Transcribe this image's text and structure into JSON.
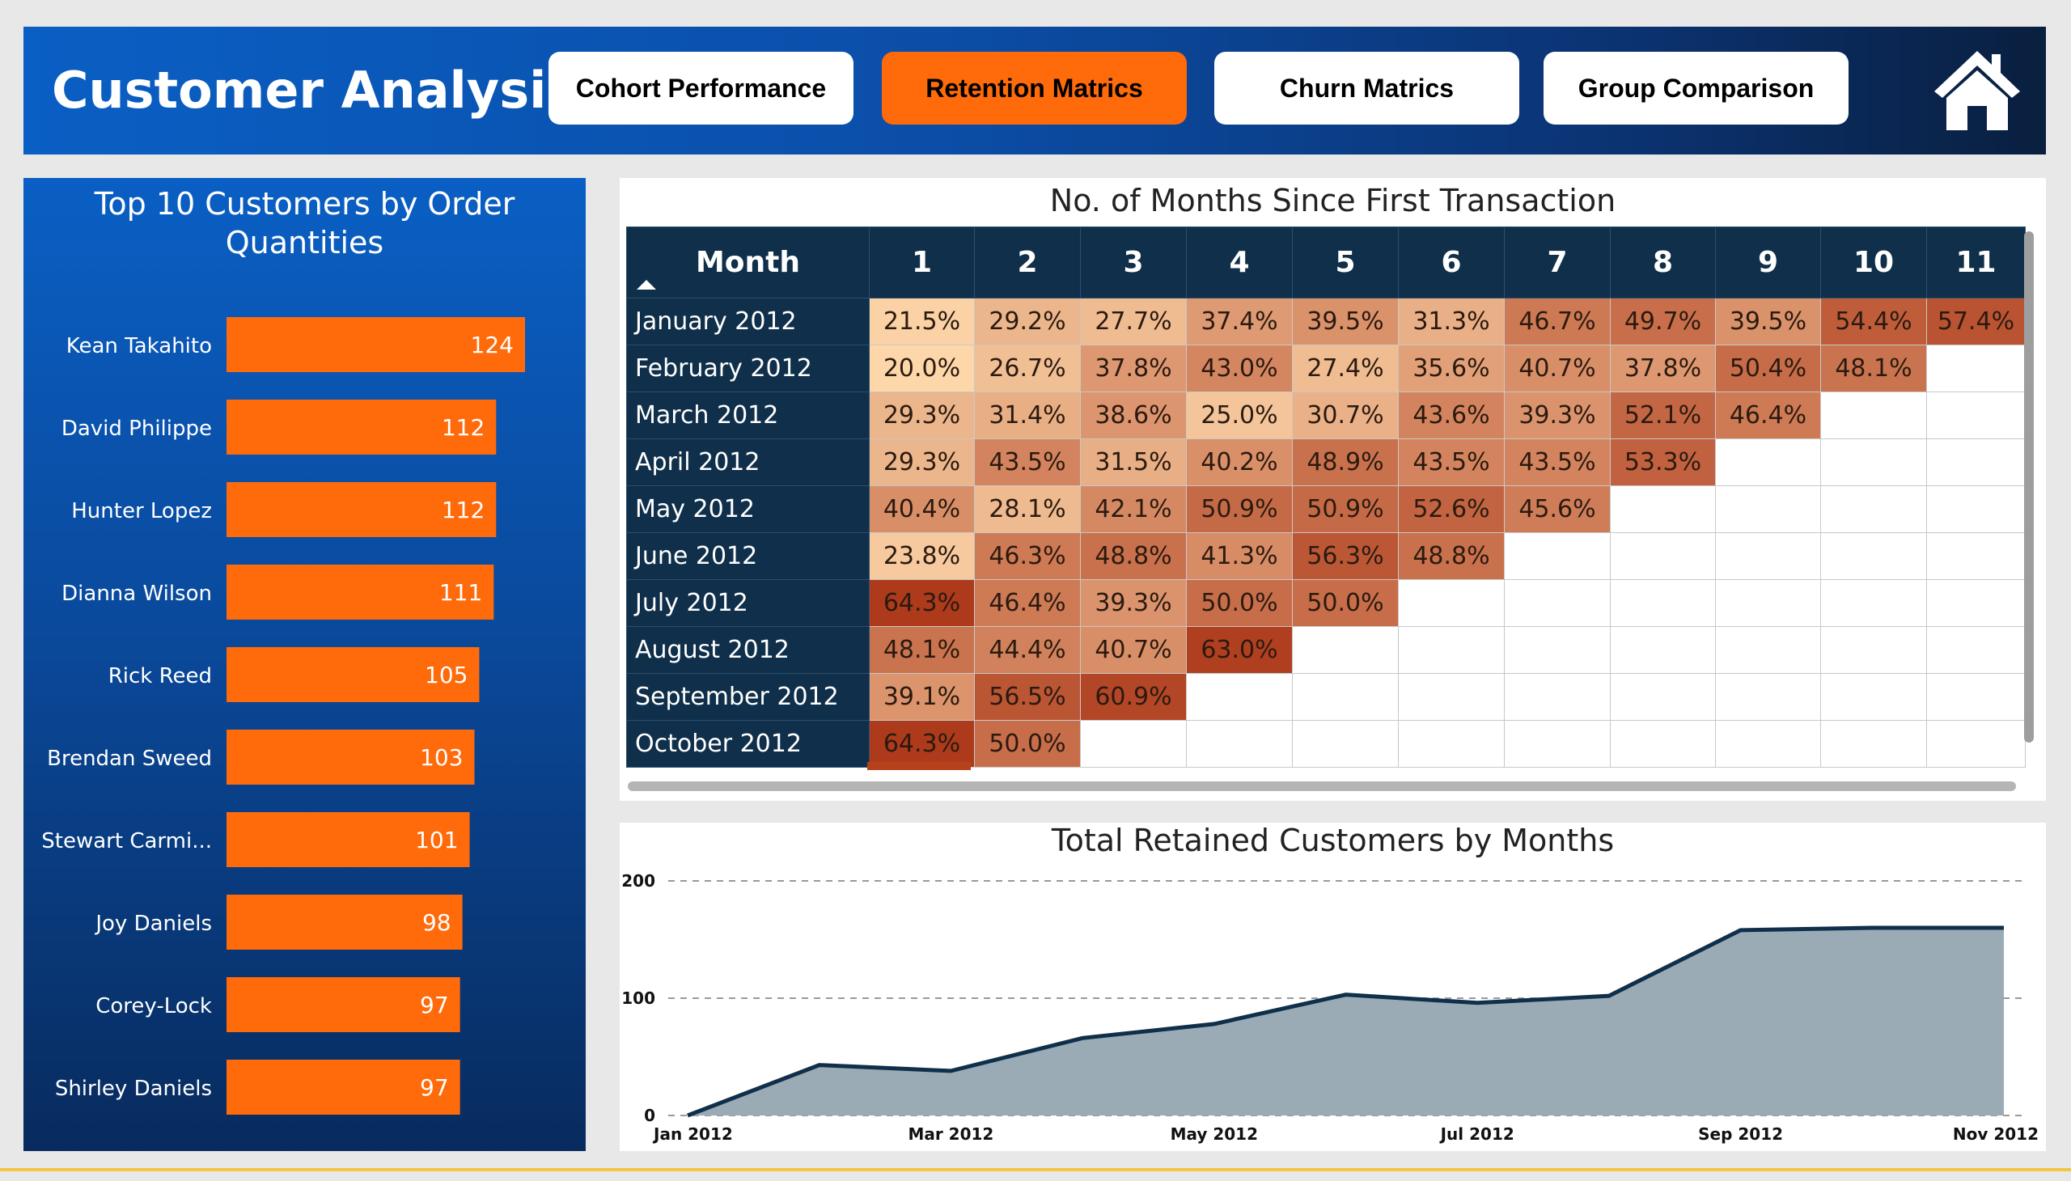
{
  "header": {
    "title": "Customer Analysis",
    "nav": [
      {
        "label": "Cohort Performance",
        "active": false
      },
      {
        "label": "Retention Matrics",
        "active": true
      },
      {
        "label": "Churn Matrics",
        "active": false
      },
      {
        "label": "Group Comparison",
        "active": false
      }
    ],
    "home_icon": "home-icon"
  },
  "colors": {
    "accent_orange": "#ff6a0a",
    "header_blue": "#0a5fc4",
    "matrix_header": "#0f2f4a",
    "area_fill": "#9aabb6",
    "area_line": "#0f2f4a"
  },
  "top_customers": {
    "title": "Top 10 Customers by Order Quantities",
    "chart_data": {
      "type": "bar",
      "orientation": "horizontal",
      "categories": [
        "Kean Takahito",
        "David Philippe",
        "Hunter Lopez",
        "Dianna Wilson",
        "Rick Reed",
        "Brendan Sweed",
        "Stewart Carmi...",
        "Joy Daniels",
        "Corey-Lock",
        "Shirley Daniels"
      ],
      "values": [
        124,
        112,
        112,
        111,
        105,
        103,
        101,
        98,
        97,
        97
      ],
      "data_labels": true
    }
  },
  "retention_matrix": {
    "title": "No. of Months Since First Transaction",
    "row_header": "Month",
    "columns": [
      "1",
      "2",
      "3",
      "4",
      "5",
      "6",
      "7",
      "8",
      "9",
      "10",
      "11"
    ],
    "rows": [
      {
        "month": "January 2012",
        "values": [
          "21.5%",
          "29.2%",
          "27.7%",
          "37.4%",
          "39.5%",
          "31.3%",
          "46.7%",
          "49.7%",
          "39.5%",
          "54.4%",
          "57.4%"
        ]
      },
      {
        "month": "February 2012",
        "values": [
          "20.0%",
          "26.7%",
          "37.8%",
          "43.0%",
          "27.4%",
          "35.6%",
          "40.7%",
          "37.8%",
          "50.4%",
          "48.1%",
          ""
        ]
      },
      {
        "month": "March 2012",
        "values": [
          "29.3%",
          "31.4%",
          "38.6%",
          "25.0%",
          "30.7%",
          "43.6%",
          "39.3%",
          "52.1%",
          "46.4%",
          "",
          ""
        ]
      },
      {
        "month": "April 2012",
        "values": [
          "29.3%",
          "43.5%",
          "31.5%",
          "40.2%",
          "48.9%",
          "43.5%",
          "43.5%",
          "53.3%",
          "",
          "",
          ""
        ]
      },
      {
        "month": "May 2012",
        "values": [
          "40.4%",
          "28.1%",
          "42.1%",
          "50.9%",
          "50.9%",
          "52.6%",
          "45.6%",
          "",
          "",
          "",
          ""
        ]
      },
      {
        "month": "June 2012",
        "values": [
          "23.8%",
          "46.3%",
          "48.8%",
          "41.3%",
          "56.3%",
          "48.8%",
          "",
          "",
          "",
          "",
          ""
        ]
      },
      {
        "month": "July 2012",
        "values": [
          "64.3%",
          "46.4%",
          "39.3%",
          "50.0%",
          "50.0%",
          "",
          "",
          "",
          "",
          "",
          ""
        ]
      },
      {
        "month": "August 2012",
        "values": [
          "48.1%",
          "44.4%",
          "40.7%",
          "63.0%",
          "",
          "",
          "",
          "",
          "",
          "",
          ""
        ]
      },
      {
        "month": "September 2012",
        "values": [
          "39.1%",
          "56.5%",
          "60.9%",
          "",
          "",
          "",
          "",
          "",
          "",
          "",
          ""
        ]
      },
      {
        "month": "October 2012",
        "values": [
          "64.3%",
          "50.0%",
          "",
          "",
          "",
          "",
          "",
          "",
          "",
          "",
          ""
        ]
      }
    ]
  },
  "retained_customers": {
    "title": "Total Retained Customers by Months",
    "chart_data": {
      "type": "area",
      "x": [
        "Jan 2012",
        "Feb 2012",
        "Mar 2012",
        "Apr 2012",
        "May 2012",
        "Jun 2012",
        "Jul 2012",
        "Aug 2012",
        "Sep 2012",
        "Oct 2012",
        "Nov 2012"
      ],
      "values": [
        0,
        43,
        38,
        66,
        78,
        103,
        96,
        102,
        158,
        160,
        160
      ],
      "x_tick_labels": [
        "Jan 2012",
        "Mar 2012",
        "May 2012",
        "Jul 2012",
        "Sep 2012",
        "Nov 2012"
      ],
      "y_ticks": [
        0,
        100,
        200
      ],
      "ylim": [
        0,
        200
      ],
      "grid": "dashed-horizontal"
    }
  }
}
